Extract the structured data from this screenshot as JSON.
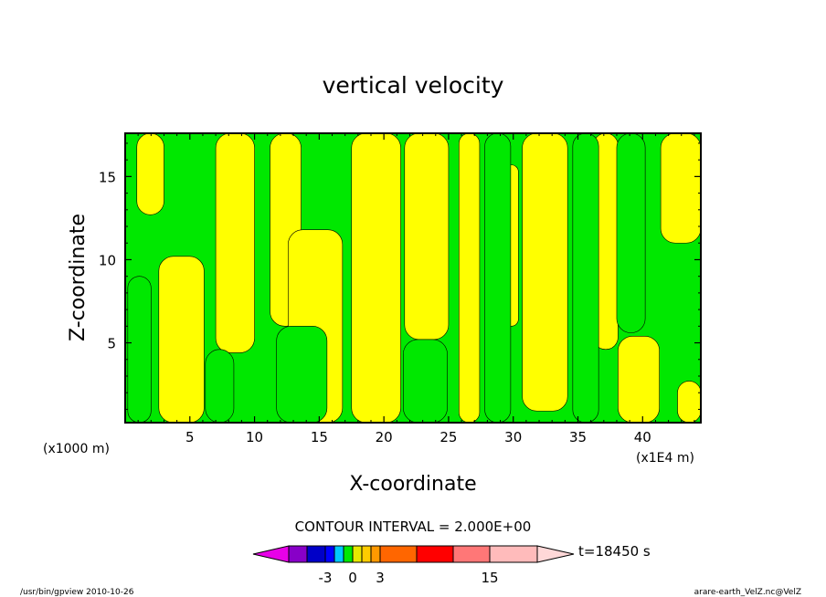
{
  "chart_data": {
    "type": "heatmap",
    "title": "vertical velocity",
    "xlabel": "X-coordinate",
    "ylabel": "Z-coordinate",
    "x_unit": "(x1E4 m)",
    "y_unit": "(x1000 m)",
    "xlim": [
      0,
      44.5
    ],
    "ylim": [
      0.2,
      17.6
    ],
    "x_ticks": [
      5,
      10,
      15,
      20,
      25,
      30,
      35,
      40
    ],
    "y_ticks": [
      5,
      10,
      15
    ],
    "fill_levels": [
      "-3 to 0 (green)",
      "0 to 3 (yellow)"
    ],
    "regions": {
      "yellow": [
        {
          "x": [
            0.9,
            3.0
          ],
          "y": [
            12.7,
            17.6
          ]
        },
        {
          "x": [
            2.6,
            6.1
          ],
          "y": [
            0.2,
            10.2
          ]
        },
        {
          "x": [
            7.0,
            10.0
          ],
          "y": [
            4.4,
            17.6
          ]
        },
        {
          "x": [
            11.2,
            13.6
          ],
          "y": [
            6.0,
            17.6
          ]
        },
        {
          "x": [
            12.6,
            16.8
          ],
          "y": [
            0.2,
            11.8
          ]
        },
        {
          "x": [
            17.5,
            21.3
          ],
          "y": [
            0.2,
            17.6
          ]
        },
        {
          "x": [
            21.6,
            25.0
          ],
          "y": [
            5.2,
            17.6
          ]
        },
        {
          "x": [
            25.8,
            27.4
          ],
          "y": [
            0.2,
            17.6
          ]
        },
        {
          "x": [
            29.3,
            30.4
          ],
          "y": [
            6.0,
            15.7
          ]
        },
        {
          "x": [
            30.7,
            34.2
          ],
          "y": [
            0.9,
            17.6
          ]
        },
        {
          "x": [
            36.2,
            38.1
          ],
          "y": [
            4.6,
            17.6
          ]
        },
        {
          "x": [
            38.1,
            41.3
          ],
          "y": [
            0.2,
            5.4
          ]
        },
        {
          "x": [
            41.4,
            44.5
          ],
          "y": [
            11.0,
            17.6
          ]
        },
        {
          "x": [
            42.7,
            44.5
          ],
          "y": [
            0.2,
            2.7
          ]
        }
      ],
      "green": [
        {
          "x": [
            0.2,
            2.0
          ],
          "y": [
            0.2,
            9.0
          ]
        },
        {
          "x": [
            6.2,
            8.4
          ],
          "y": [
            0.2,
            4.6
          ]
        },
        {
          "x": [
            11.7,
            15.6
          ],
          "y": [
            0.2,
            6.0
          ]
        },
        {
          "x": [
            21.5,
            24.9
          ],
          "y": [
            0.2,
            5.2
          ]
        },
        {
          "x": [
            27.8,
            29.8
          ],
          "y": [
            0.2,
            17.6
          ]
        },
        {
          "x": [
            34.6,
            36.6
          ],
          "y": [
            0.2,
            17.6
          ]
        },
        {
          "x": [
            38.0,
            40.2
          ],
          "y": [
            5.6,
            17.6
          ]
        }
      ]
    }
  },
  "contour_label": "CONTOUR INTERVAL = 2.000E+00",
  "colorbar": {
    "colors": [
      "#e800e8",
      "#8800c8",
      "#0000c8",
      "#0000ff",
      "#00c8ff",
      "#00e800",
      "#e8e800",
      "#ffcc00",
      "#ff9900",
      "#ff6600",
      "#ff0000",
      "#ff7777",
      "#ffbbbb",
      "#ffd8d8"
    ],
    "labels": [
      "-3",
      "0",
      "3",
      "15"
    ]
  },
  "time_label": "t=18450 s",
  "footer_left": "/usr/bin/gpview  2010-10-26",
  "footer_right": "arare-earth_VelZ.nc@VelZ"
}
